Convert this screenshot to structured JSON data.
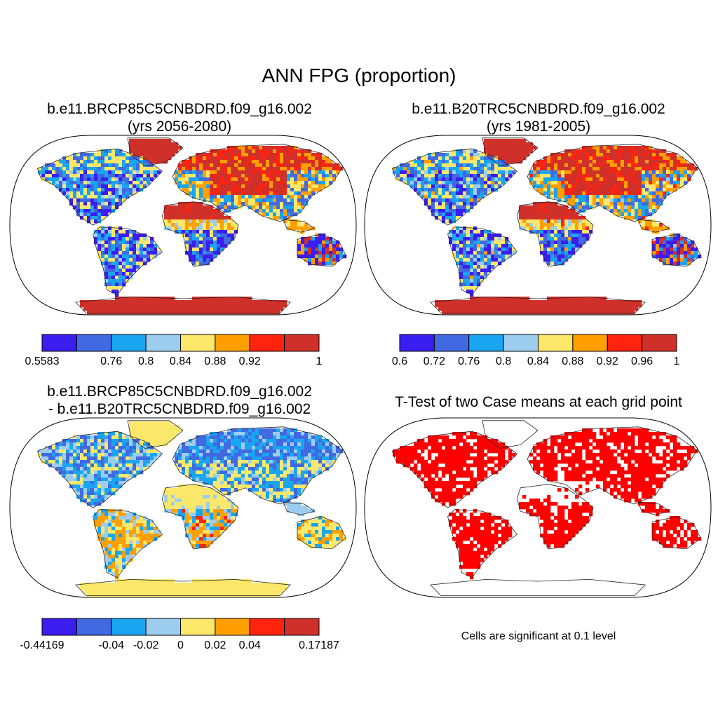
{
  "figure": {
    "title": "ANN FPG (proportion)",
    "panels": [
      {
        "id": "future",
        "title_line1": "b.e11.BRCP85C5CNBDRD.f09_g16.002",
        "title_line2": "(yrs 2056-2080)",
        "colorbar": {
          "colors": [
            "#3a1ef0",
            "#4169e1",
            "#1aa5f0",
            "#9ccdee",
            "#fbe86a",
            "#ff9f00",
            "#ff2310",
            "#d0302a"
          ],
          "tick_labels": [
            "0.5583",
            "0.76",
            "0.8",
            "0.84",
            "0.88",
            "0.92",
            "1"
          ],
          "tick_boundary_index": [
            0,
            2,
            3,
            4,
            5,
            6,
            8
          ]
        }
      },
      {
        "id": "historical",
        "title_line1": "b.e11.B20TRC5CNBDRD.f09_g16.002",
        "title_line2": "(yrs 1981-2005)",
        "colorbar": {
          "colors": [
            "#3a1ef0",
            "#4169e1",
            "#1aa5f0",
            "#9ccdee",
            "#fbe86a",
            "#ff9f00",
            "#ff2310",
            "#d0302a"
          ],
          "tick_labels": [
            "0.6",
            "0.72",
            "0.76",
            "0.8",
            "0.84",
            "0.88",
            "0.92",
            "0.96",
            "1"
          ],
          "tick_boundary_index": [
            0,
            1,
            2,
            3,
            4,
            5,
            6,
            7,
            8
          ]
        }
      },
      {
        "id": "difference",
        "title_line1": "b.e11.BRCP85C5CNBDRD.f09_g16.002",
        "title_line2": "- b.e11.B20TRC5CNBDRD.f09_g16.002",
        "colorbar": {
          "colors": [
            "#3a1ef0",
            "#4169e1",
            "#1aa5f0",
            "#9ccdee",
            "#fbe86a",
            "#ff9f00",
            "#ff2310",
            "#d0302a"
          ],
          "tick_labels": [
            "-0.44169",
            "-0.04",
            "-0.02",
            "0",
            "0.02",
            "0.04",
            "0.17187"
          ],
          "tick_boundary_index": [
            0,
            2,
            3,
            4,
            5,
            6,
            8
          ]
        }
      },
      {
        "id": "ttest",
        "title_line1": "T-Test of two Case means at each grid point",
        "note": "Cells are significant at 0.1 level",
        "significant_color": "#ff0000"
      }
    ]
  }
}
